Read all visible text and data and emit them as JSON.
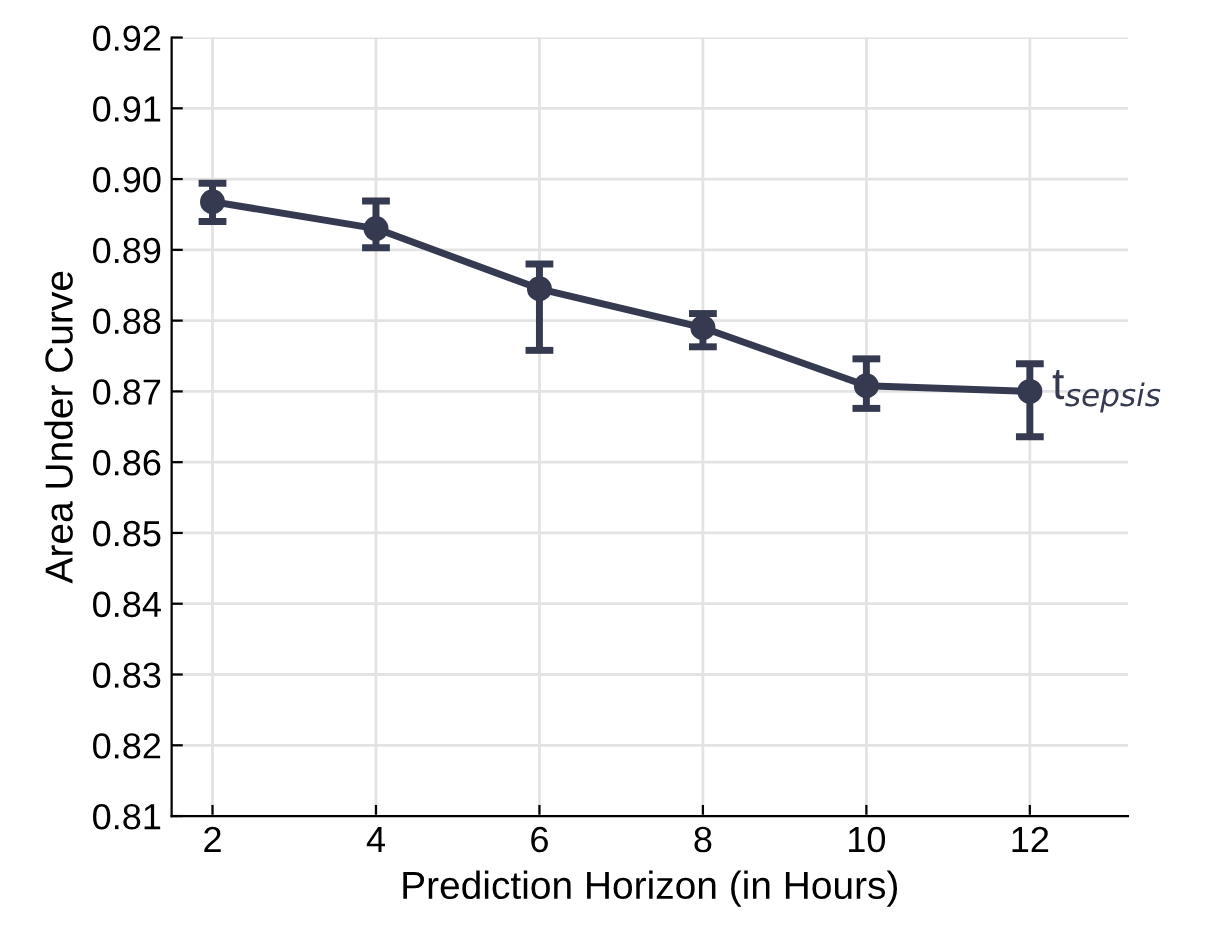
{
  "chart_data": {
    "type": "line",
    "xlabel": "Prediction Horizon (in Hours)",
    "ylabel": "Area Under Curve",
    "x": [
      2,
      4,
      6,
      8,
      10,
      12
    ],
    "series": [
      {
        "color": "#353a50",
        "values": [
          0.8968,
          0.893,
          0.8845,
          0.879,
          0.8708,
          0.87
        ],
        "errors": [
          [
            0.894,
            0.8994
          ],
          [
            0.8903,
            0.8969
          ],
          [
            0.8758,
            0.888
          ],
          [
            0.8763,
            0.881
          ],
          [
            0.8676,
            0.8746
          ],
          [
            0.8636,
            0.8739
          ]
        ]
      }
    ],
    "annotations": [
      {
        "text": "t$_{sepsis}$",
        "x": 12,
        "y": 0.87
      }
    ],
    "xlim": [
      1.5,
      13.2
    ],
    "ylim": [
      0.81,
      0.92
    ],
    "xticks": [
      2,
      4,
      6,
      8,
      10,
      12
    ],
    "yticks": [
      {
        "value": 0.81,
        "label": "0.81"
      },
      {
        "value": 0.82,
        "label": "0.82"
      },
      {
        "value": 0.83,
        "label": "0.83"
      },
      {
        "value": 0.84,
        "label": "0.84"
      },
      {
        "value": 0.85,
        "label": "0.85"
      },
      {
        "value": 0.86,
        "label": "0.86"
      },
      {
        "value": 0.87,
        "label": "0.87"
      },
      {
        "value": 0.88,
        "label": "0.88"
      },
      {
        "value": 0.89,
        "label": "0.89"
      },
      {
        "value": 0.9,
        "label": "0.90"
      },
      {
        "value": 0.91,
        "label": "0.91"
      },
      {
        "value": 0.92,
        "label": "0.92"
      }
    ],
    "grid": true,
    "marker": "circle",
    "line_style": "solid"
  }
}
